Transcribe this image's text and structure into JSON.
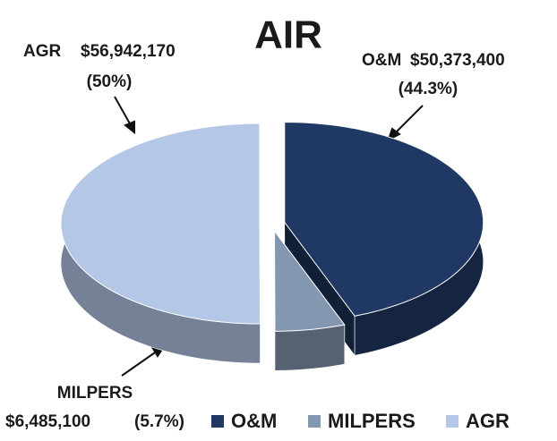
{
  "chart_data": {
    "type": "pie",
    "title": "AIR",
    "categories": [
      "O&M",
      "MILPERS",
      "AGR"
    ],
    "values": [
      50373400,
      6485100,
      56942170
    ],
    "value_labels": [
      "$50,373,400",
      "$6,485,100",
      "$56,942,170"
    ],
    "percent_labels": [
      "(44.3%)",
      "(5.7%)",
      "(50%)"
    ],
    "colors": [
      "#1f3864",
      "#8497b0",
      "#b4c7e7"
    ],
    "legend": "bottom"
  }
}
